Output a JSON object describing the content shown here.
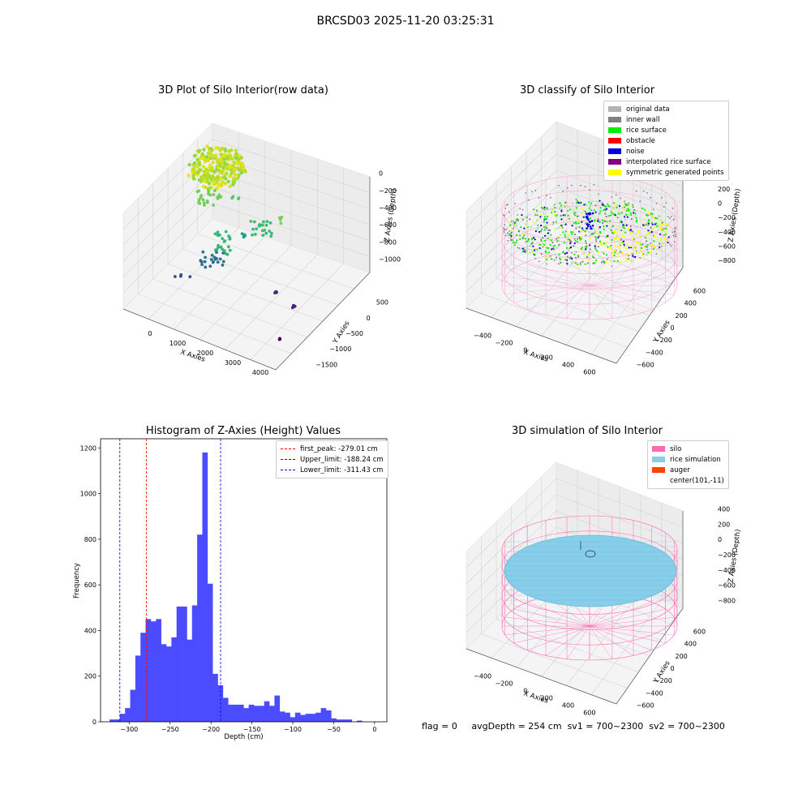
{
  "suptitle": "BRCSD03 2025-11-20 03:25:31",
  "panels": {
    "raw": {
      "title": "3D Plot of Silo Interior(row data)",
      "xlabel": "X Axies",
      "ylabel": "Y Axies",
      "zlabel": "Z Axies (Depth)",
      "xticks": [
        "0",
        "1000",
        "2000",
        "3000",
        "4000"
      ],
      "yticks": [
        "500",
        "0",
        "−500",
        "−1000",
        "−1500"
      ],
      "zticks": [
        "0",
        "−200",
        "−400",
        "−600",
        "−800",
        "−1000"
      ]
    },
    "classify": {
      "title": "3D classify of Silo Interior",
      "xlabel": "X Axies",
      "ylabel": "Y Axies",
      "zlabel": "Z Axies (Depth)",
      "xticks": [
        "−400",
        "−200",
        "0",
        "200",
        "400",
        "600"
      ],
      "yticks": [
        "600",
        "400",
        "200",
        "0",
        "−200",
        "−400",
        "−600"
      ],
      "zticks": [
        "200",
        "0",
        "−200",
        "−400",
        "−600",
        "−800"
      ],
      "legend": [
        {
          "label": "original data",
          "color": "#b3b3b3"
        },
        {
          "label": "inner wall",
          "color": "#808080"
        },
        {
          "label": "rice surface",
          "color": "#00ee00"
        },
        {
          "label": "obstacle",
          "color": "#ff0000"
        },
        {
          "label": "noise",
          "color": "#0000dd"
        },
        {
          "label": "interpolated rice surface",
          "color": "#800080"
        },
        {
          "label": "symmetric generated points",
          "color": "#ffff00"
        }
      ]
    },
    "hist": {
      "title": "Histogram of Z-Axies (Height) Values",
      "xlabel": "Depth (cm)",
      "ylabel": "Frequency",
      "legend": [
        {
          "label": "first_peak: -279.01 cm",
          "color": "#ff0000"
        },
        {
          "label": "Upper_limit: -188.24 cm",
          "color": "#0000ff"
        },
        {
          "label": "Lower_limit: -311.43 cm",
          "color": "#0000ff"
        }
      ]
    },
    "sim": {
      "title": "3D simulation of Silo Interior",
      "xlabel": "X Axies",
      "ylabel": "Y Axies",
      "zlabel": "Z Axies (Depth)",
      "xticks": [
        "−400",
        "−200",
        "0",
        "200",
        "400",
        "600"
      ],
      "yticks": [
        "600",
        "400",
        "200",
        "0",
        "−200",
        "−400",
        "−600"
      ],
      "zticks": [
        "400",
        "200",
        "0",
        "−200",
        "−400",
        "−600",
        "−800"
      ],
      "legend": [
        {
          "label": "silo",
          "color": "#ff69b4"
        },
        {
          "label": "rice simulation",
          "color": "#87ceeb"
        },
        {
          "label": "auger",
          "color": "#ff4500"
        },
        {
          "label": "center(101,-11)",
          "color": ""
        }
      ]
    }
  },
  "footer": {
    "flag": "flag = 0",
    "avg": "avgDepth = 254 cm",
    "sv1": "sv1 = 700~2300",
    "sv2": "sv2 = 700~2300"
  },
  "chart_data": [
    {
      "type": "scatter",
      "title": "3D Plot of Silo Interior(row data)",
      "xlabel": "X Axies",
      "ylabel": "Y Axies",
      "zlabel": "Z Axies (Depth)",
      "xlim": [
        -500,
        4200
      ],
      "ylim": [
        -1800,
        700
      ],
      "zlim": [
        -1100,
        50
      ]
    },
    {
      "type": "scatter",
      "title": "3D classify of Silo Interior",
      "xlabel": "X Axies",
      "ylabel": "Y Axies",
      "zlabel": "Z Axies (Depth)",
      "xlim": [
        -500,
        700
      ],
      "ylim": [
        -650,
        650
      ],
      "zlim": [
        -900,
        250
      ],
      "series": [
        "original data",
        "inner wall",
        "rice surface",
        "obstacle",
        "noise",
        "interpolated rice surface",
        "symmetric generated points"
      ]
    },
    {
      "type": "bar",
      "title": "Histogram of Z-Axies (Height) Values",
      "xlabel": "Depth (cm)",
      "ylabel": "Frequency",
      "xlim": [
        -335,
        15
      ],
      "ylim": [
        0,
        1240
      ],
      "xticks": [
        -300,
        -250,
        -200,
        -150,
        -100,
        -50,
        0
      ],
      "yticks": [
        0,
        200,
        400,
        600,
        800,
        1000,
        1200
      ],
      "bin_start": -324,
      "bin_width": 6.3,
      "values": [
        10,
        10,
        35,
        60,
        140,
        290,
        390,
        450,
        440,
        450,
        340,
        330,
        370,
        505,
        505,
        360,
        510,
        820,
        1180,
        605,
        210,
        160,
        105,
        75,
        75,
        75,
        60,
        75,
        70,
        70,
        90,
        70,
        115,
        45,
        40,
        20,
        40,
        30,
        35,
        35,
        40,
        60,
        50,
        15,
        10,
        10,
        10,
        0,
        5
      ],
      "vlines": [
        {
          "x": -279.01,
          "color": "#ff0000",
          "label": "first_peak: -279.01 cm"
        },
        {
          "x": -188.24,
          "color": "#0000ff",
          "label": "Upper_limit: -188.24 cm"
        },
        {
          "x": -311.43,
          "color": "#0000ff",
          "label": "Lower_limit: -311.43 cm"
        }
      ],
      "legend_position": "top-right"
    },
    {
      "type": "scatter",
      "title": "3D simulation of Silo Interior",
      "xlabel": "X Axies",
      "ylabel": "Y Axies",
      "zlabel": "Z Axies (Depth)",
      "xlim": [
        -500,
        700
      ],
      "ylim": [
        -650,
        650
      ],
      "zlim": [
        -900,
        450
      ],
      "series": [
        "silo",
        "rice simulation",
        "auger",
        "center(101,-11)"
      ]
    }
  ]
}
